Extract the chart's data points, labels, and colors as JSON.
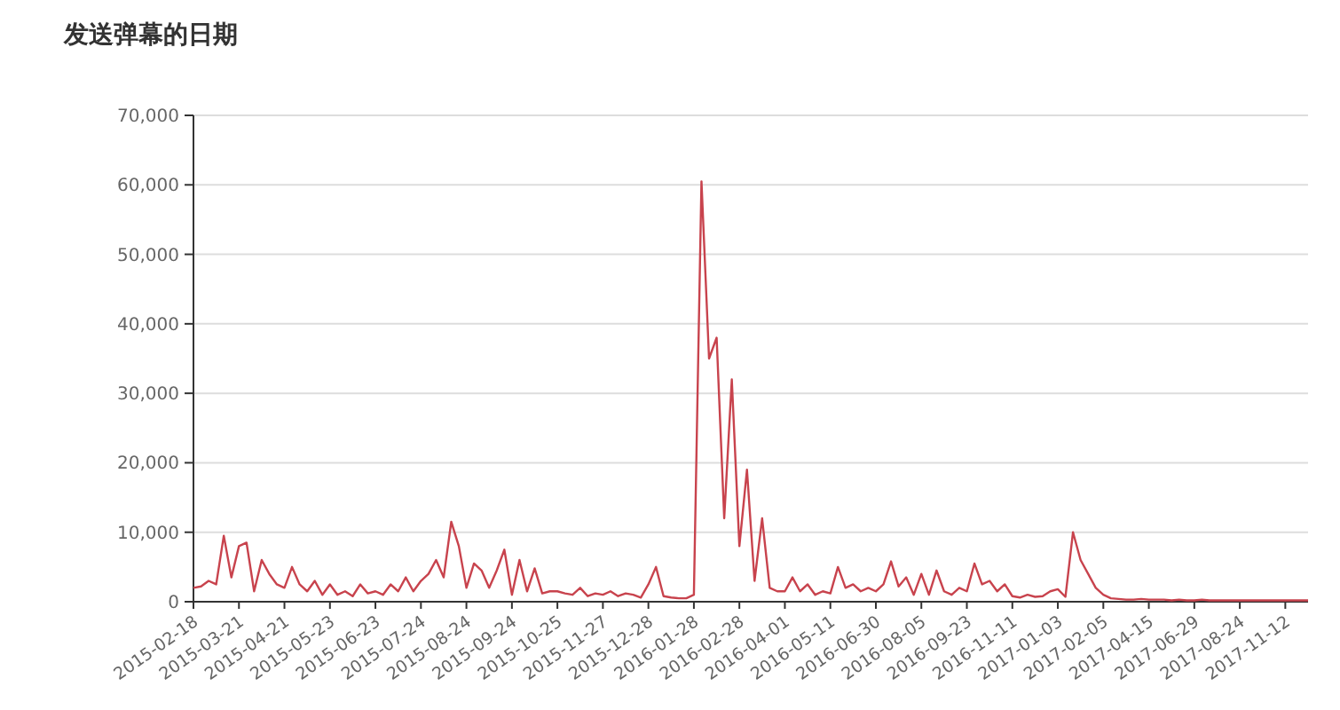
{
  "chart_data": {
    "type": "line",
    "title": "发送弹幕的日期",
    "categories": [
      "2015-02-18",
      null,
      null,
      null,
      null,
      null,
      "2015-03-21",
      null,
      null,
      null,
      null,
      null,
      "2015-04-21",
      null,
      null,
      null,
      null,
      null,
      "2015-05-23",
      null,
      null,
      null,
      null,
      null,
      "2015-06-23",
      null,
      null,
      null,
      null,
      null,
      "2015-07-24",
      null,
      null,
      null,
      null,
      null,
      "2015-08-24",
      null,
      null,
      null,
      null,
      null,
      "2015-09-24",
      null,
      null,
      null,
      null,
      null,
      "2015-10-25",
      null,
      null,
      null,
      null,
      null,
      "2015-11-27",
      null,
      null,
      null,
      null,
      null,
      "2015-12-28",
      null,
      null,
      null,
      null,
      null,
      "2016-01-28",
      null,
      null,
      null,
      null,
      null,
      "2016-02-28",
      null,
      null,
      null,
      null,
      null,
      "2016-04-01",
      null,
      null,
      null,
      null,
      null,
      "2016-05-11",
      null,
      null,
      null,
      null,
      null,
      "2016-06-30",
      null,
      null,
      null,
      null,
      null,
      "2016-08-05",
      null,
      null,
      null,
      null,
      null,
      "2016-09-23",
      null,
      null,
      null,
      null,
      null,
      "2016-11-11",
      null,
      null,
      null,
      null,
      null,
      "2017-01-03",
      null,
      null,
      null,
      null,
      null,
      "2017-02-05",
      null,
      null,
      null,
      null,
      null,
      "2017-04-15",
      null,
      null,
      null,
      null,
      null,
      "2017-06-29",
      null,
      null,
      null,
      null,
      null,
      "2017-08-24",
      null,
      null,
      null,
      null,
      null,
      "2017-11-12",
      null,
      null,
      null
    ],
    "series": [
      {
        "color": "#c8434d",
        "values": [
          2000,
          2200,
          3000,
          2500,
          9500,
          3500,
          8000,
          8500,
          1500,
          6000,
          4000,
          2500,
          2000,
          5000,
          2500,
          1500,
          3000,
          1000,
          2500,
          1000,
          1500,
          800,
          2500,
          1200,
          1500,
          1000,
          2500,
          1500,
          3500,
          1500,
          3000,
          4000,
          6000,
          3500,
          11500,
          8000,
          2000,
          5500,
          4500,
          2000,
          4500,
          7500,
          1000,
          6000,
          1500,
          4800,
          1200,
          1500,
          1500,
          1200,
          1000,
          2000,
          800,
          1200,
          1000,
          1500,
          800,
          1200,
          1000,
          600,
          2500,
          5000,
          800,
          600,
          500,
          500,
          1000,
          60500,
          35000,
          38000,
          12000,
          32000,
          8000,
          19000,
          3000,
          12000,
          2000,
          1500,
          1500,
          3500,
          1500,
          2500,
          1000,
          1500,
          1200,
          5000,
          2000,
          2500,
          1500,
          2000,
          1500,
          2500,
          5800,
          2200,
          3500,
          1000,
          4000,
          1000,
          4500,
          1500,
          1000,
          2000,
          1500,
          5500,
          2500,
          3000,
          1500,
          2500,
          800,
          600,
          1000,
          700,
          800,
          1500,
          1800,
          700,
          10000,
          6000,
          4000,
          2000,
          1000,
          500,
          400,
          300,
          300,
          400,
          300,
          300,
          300,
          200,
          300,
          200,
          200,
          300,
          200,
          200,
          200,
          200,
          200,
          200,
          200,
          200,
          200,
          200,
          200,
          200,
          200,
          200
        ]
      }
    ],
    "ylim": [
      0,
      70000
    ],
    "yticks": [
      {
        "value": 0,
        "label": "0"
      },
      {
        "value": 10000,
        "label": "10,000"
      },
      {
        "value": 20000,
        "label": "20,000"
      },
      {
        "value": 30000,
        "label": "30,000"
      },
      {
        "value": 40000,
        "label": "40,000"
      },
      {
        "value": 50000,
        "label": "50,000"
      },
      {
        "value": 60000,
        "label": "60,000"
      },
      {
        "value": 70000,
        "label": "70,000"
      }
    ],
    "grid": "y",
    "line_style": "solid"
  }
}
